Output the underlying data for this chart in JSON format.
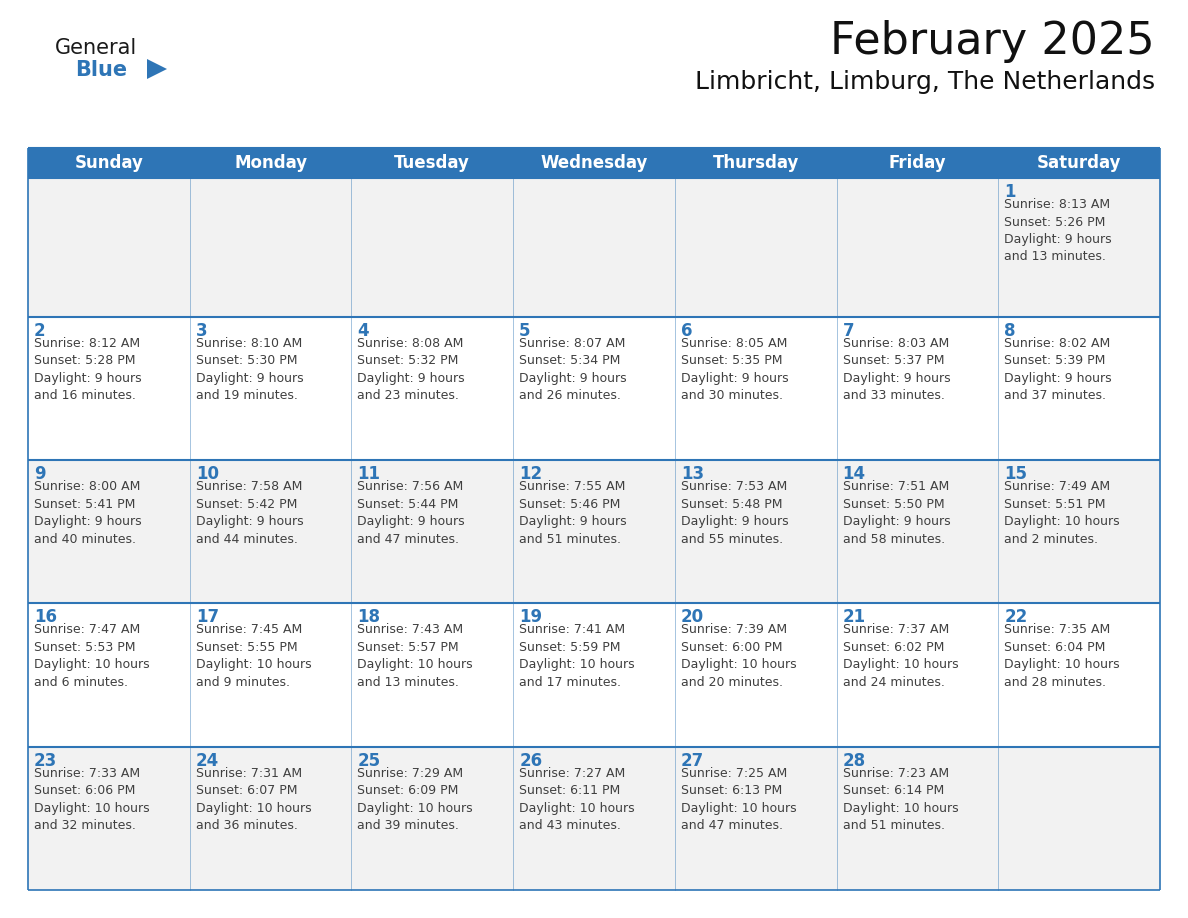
{
  "title": "February 2025",
  "subtitle": "Limbricht, Limburg, The Netherlands",
  "header_bg": "#2E75B6",
  "header_text_color": "#FFFFFF",
  "cell_border_color": "#2E75B6",
  "day_number_color": "#2E75B6",
  "info_text_color": "#404040",
  "background_color": "#FFFFFF",
  "alt_row_color": "#F2F2F2",
  "days_of_week": [
    "Sunday",
    "Monday",
    "Tuesday",
    "Wednesday",
    "Thursday",
    "Friday",
    "Saturday"
  ],
  "weeks": [
    [
      {
        "day": null,
        "info": null
      },
      {
        "day": null,
        "info": null
      },
      {
        "day": null,
        "info": null
      },
      {
        "day": null,
        "info": null
      },
      {
        "day": null,
        "info": null
      },
      {
        "day": null,
        "info": null
      },
      {
        "day": 1,
        "info": "Sunrise: 8:13 AM\nSunset: 5:26 PM\nDaylight: 9 hours\nand 13 minutes."
      }
    ],
    [
      {
        "day": 2,
        "info": "Sunrise: 8:12 AM\nSunset: 5:28 PM\nDaylight: 9 hours\nand 16 minutes."
      },
      {
        "day": 3,
        "info": "Sunrise: 8:10 AM\nSunset: 5:30 PM\nDaylight: 9 hours\nand 19 minutes."
      },
      {
        "day": 4,
        "info": "Sunrise: 8:08 AM\nSunset: 5:32 PM\nDaylight: 9 hours\nand 23 minutes."
      },
      {
        "day": 5,
        "info": "Sunrise: 8:07 AM\nSunset: 5:34 PM\nDaylight: 9 hours\nand 26 minutes."
      },
      {
        "day": 6,
        "info": "Sunrise: 8:05 AM\nSunset: 5:35 PM\nDaylight: 9 hours\nand 30 minutes."
      },
      {
        "day": 7,
        "info": "Sunrise: 8:03 AM\nSunset: 5:37 PM\nDaylight: 9 hours\nand 33 minutes."
      },
      {
        "day": 8,
        "info": "Sunrise: 8:02 AM\nSunset: 5:39 PM\nDaylight: 9 hours\nand 37 minutes."
      }
    ],
    [
      {
        "day": 9,
        "info": "Sunrise: 8:00 AM\nSunset: 5:41 PM\nDaylight: 9 hours\nand 40 minutes."
      },
      {
        "day": 10,
        "info": "Sunrise: 7:58 AM\nSunset: 5:42 PM\nDaylight: 9 hours\nand 44 minutes."
      },
      {
        "day": 11,
        "info": "Sunrise: 7:56 AM\nSunset: 5:44 PM\nDaylight: 9 hours\nand 47 minutes."
      },
      {
        "day": 12,
        "info": "Sunrise: 7:55 AM\nSunset: 5:46 PM\nDaylight: 9 hours\nand 51 minutes."
      },
      {
        "day": 13,
        "info": "Sunrise: 7:53 AM\nSunset: 5:48 PM\nDaylight: 9 hours\nand 55 minutes."
      },
      {
        "day": 14,
        "info": "Sunrise: 7:51 AM\nSunset: 5:50 PM\nDaylight: 9 hours\nand 58 minutes."
      },
      {
        "day": 15,
        "info": "Sunrise: 7:49 AM\nSunset: 5:51 PM\nDaylight: 10 hours\nand 2 minutes."
      }
    ],
    [
      {
        "day": 16,
        "info": "Sunrise: 7:47 AM\nSunset: 5:53 PM\nDaylight: 10 hours\nand 6 minutes."
      },
      {
        "day": 17,
        "info": "Sunrise: 7:45 AM\nSunset: 5:55 PM\nDaylight: 10 hours\nand 9 minutes."
      },
      {
        "day": 18,
        "info": "Sunrise: 7:43 AM\nSunset: 5:57 PM\nDaylight: 10 hours\nand 13 minutes."
      },
      {
        "day": 19,
        "info": "Sunrise: 7:41 AM\nSunset: 5:59 PM\nDaylight: 10 hours\nand 17 minutes."
      },
      {
        "day": 20,
        "info": "Sunrise: 7:39 AM\nSunset: 6:00 PM\nDaylight: 10 hours\nand 20 minutes."
      },
      {
        "day": 21,
        "info": "Sunrise: 7:37 AM\nSunset: 6:02 PM\nDaylight: 10 hours\nand 24 minutes."
      },
      {
        "day": 22,
        "info": "Sunrise: 7:35 AM\nSunset: 6:04 PM\nDaylight: 10 hours\nand 28 minutes."
      }
    ],
    [
      {
        "day": 23,
        "info": "Sunrise: 7:33 AM\nSunset: 6:06 PM\nDaylight: 10 hours\nand 32 minutes."
      },
      {
        "day": 24,
        "info": "Sunrise: 7:31 AM\nSunset: 6:07 PM\nDaylight: 10 hours\nand 36 minutes."
      },
      {
        "day": 25,
        "info": "Sunrise: 7:29 AM\nSunset: 6:09 PM\nDaylight: 10 hours\nand 39 minutes."
      },
      {
        "day": 26,
        "info": "Sunrise: 7:27 AM\nSunset: 6:11 PM\nDaylight: 10 hours\nand 43 minutes."
      },
      {
        "day": 27,
        "info": "Sunrise: 7:25 AM\nSunset: 6:13 PM\nDaylight: 10 hours\nand 47 minutes."
      },
      {
        "day": 28,
        "info": "Sunrise: 7:23 AM\nSunset: 6:14 PM\nDaylight: 10 hours\nand 51 minutes."
      },
      {
        "day": null,
        "info": null
      }
    ]
  ],
  "logo_general_color": "#1a1a1a",
  "logo_blue_color": "#2E75B6",
  "title_fontsize": 32,
  "subtitle_fontsize": 18,
  "header_fontsize": 12,
  "day_number_fontsize": 12,
  "info_fontsize": 9
}
